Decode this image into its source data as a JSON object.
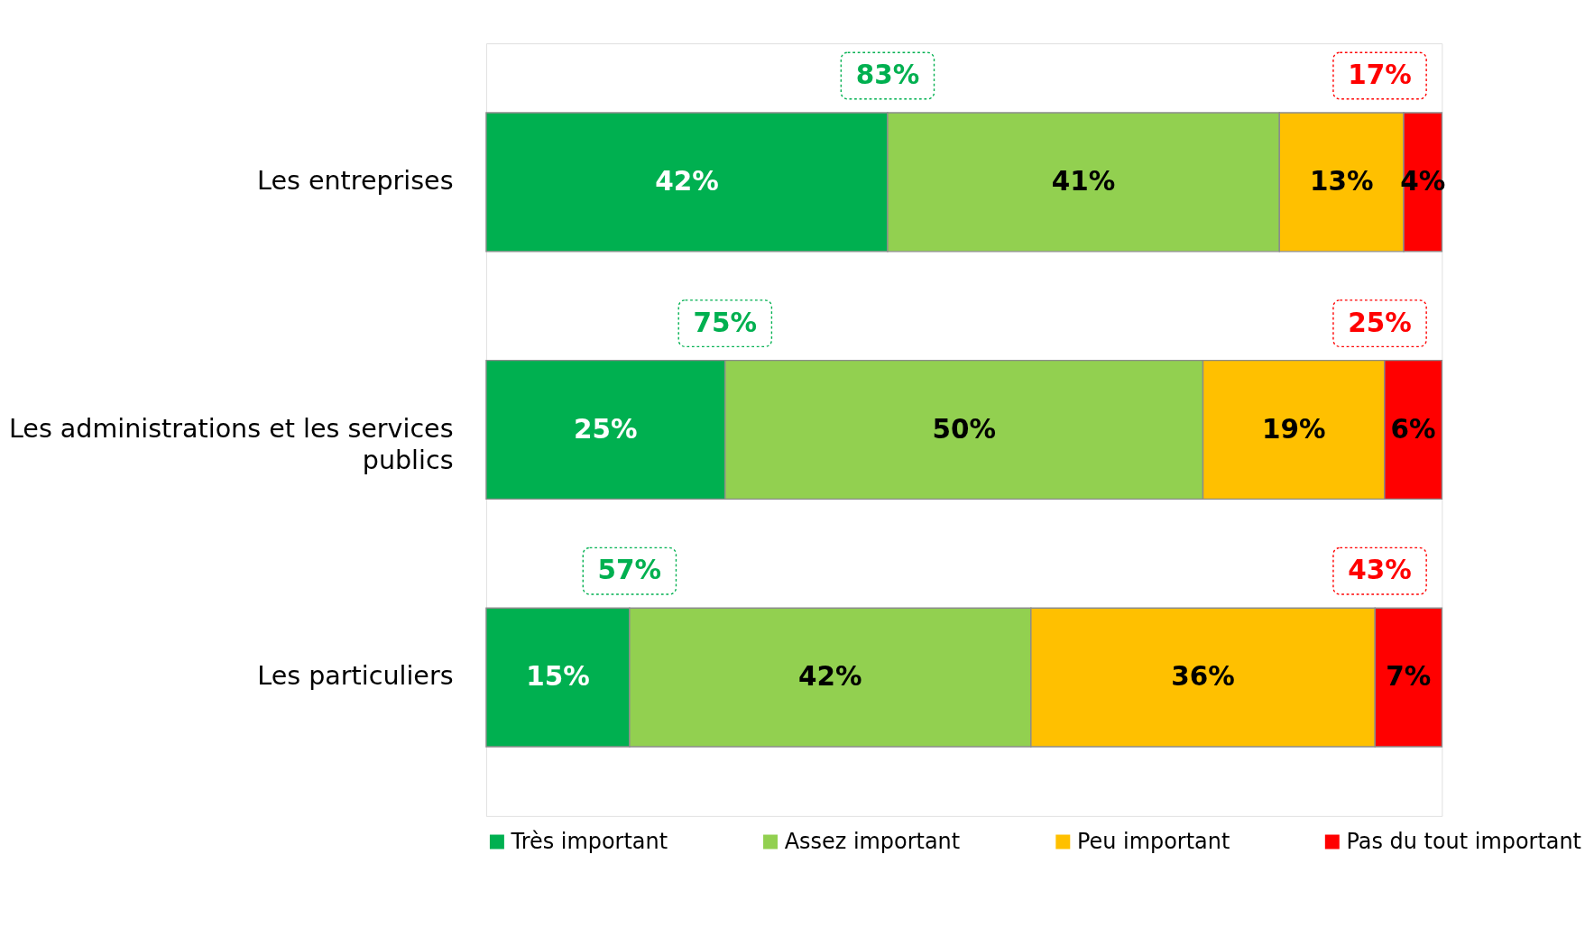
{
  "chart_data": {
    "type": "bar",
    "orientation": "horizontal",
    "stacked": true,
    "legend": "bottom",
    "categories": [
      "Les entreprises",
      "Les administrations et les services publics",
      "Les particuliers"
    ],
    "series": [
      {
        "name": "Très important",
        "color": "#00b050",
        "values": [
          42,
          25,
          15
        ],
        "value_labels": [
          "42%",
          "25%",
          "15%"
        ]
      },
      {
        "name": "Assez important",
        "color": "#92d050",
        "values": [
          41,
          50,
          42
        ],
        "value_labels": [
          "41%",
          "50%",
          "42%"
        ]
      },
      {
        "name": "Peu important",
        "color": "#ffc000",
        "values": [
          13,
          19,
          36
        ],
        "value_labels": [
          "13%",
          "19%",
          "36%"
        ]
      },
      {
        "name": "Pas du tout important",
        "color": "#ff0000",
        "values": [
          4,
          6,
          7
        ],
        "value_labels": [
          "4%",
          "6%",
          "7%"
        ]
      }
    ],
    "annotations": [
      "83%",
      "17%",
      "75%",
      "25%",
      "57%",
      "43%"
    ]
  }
}
